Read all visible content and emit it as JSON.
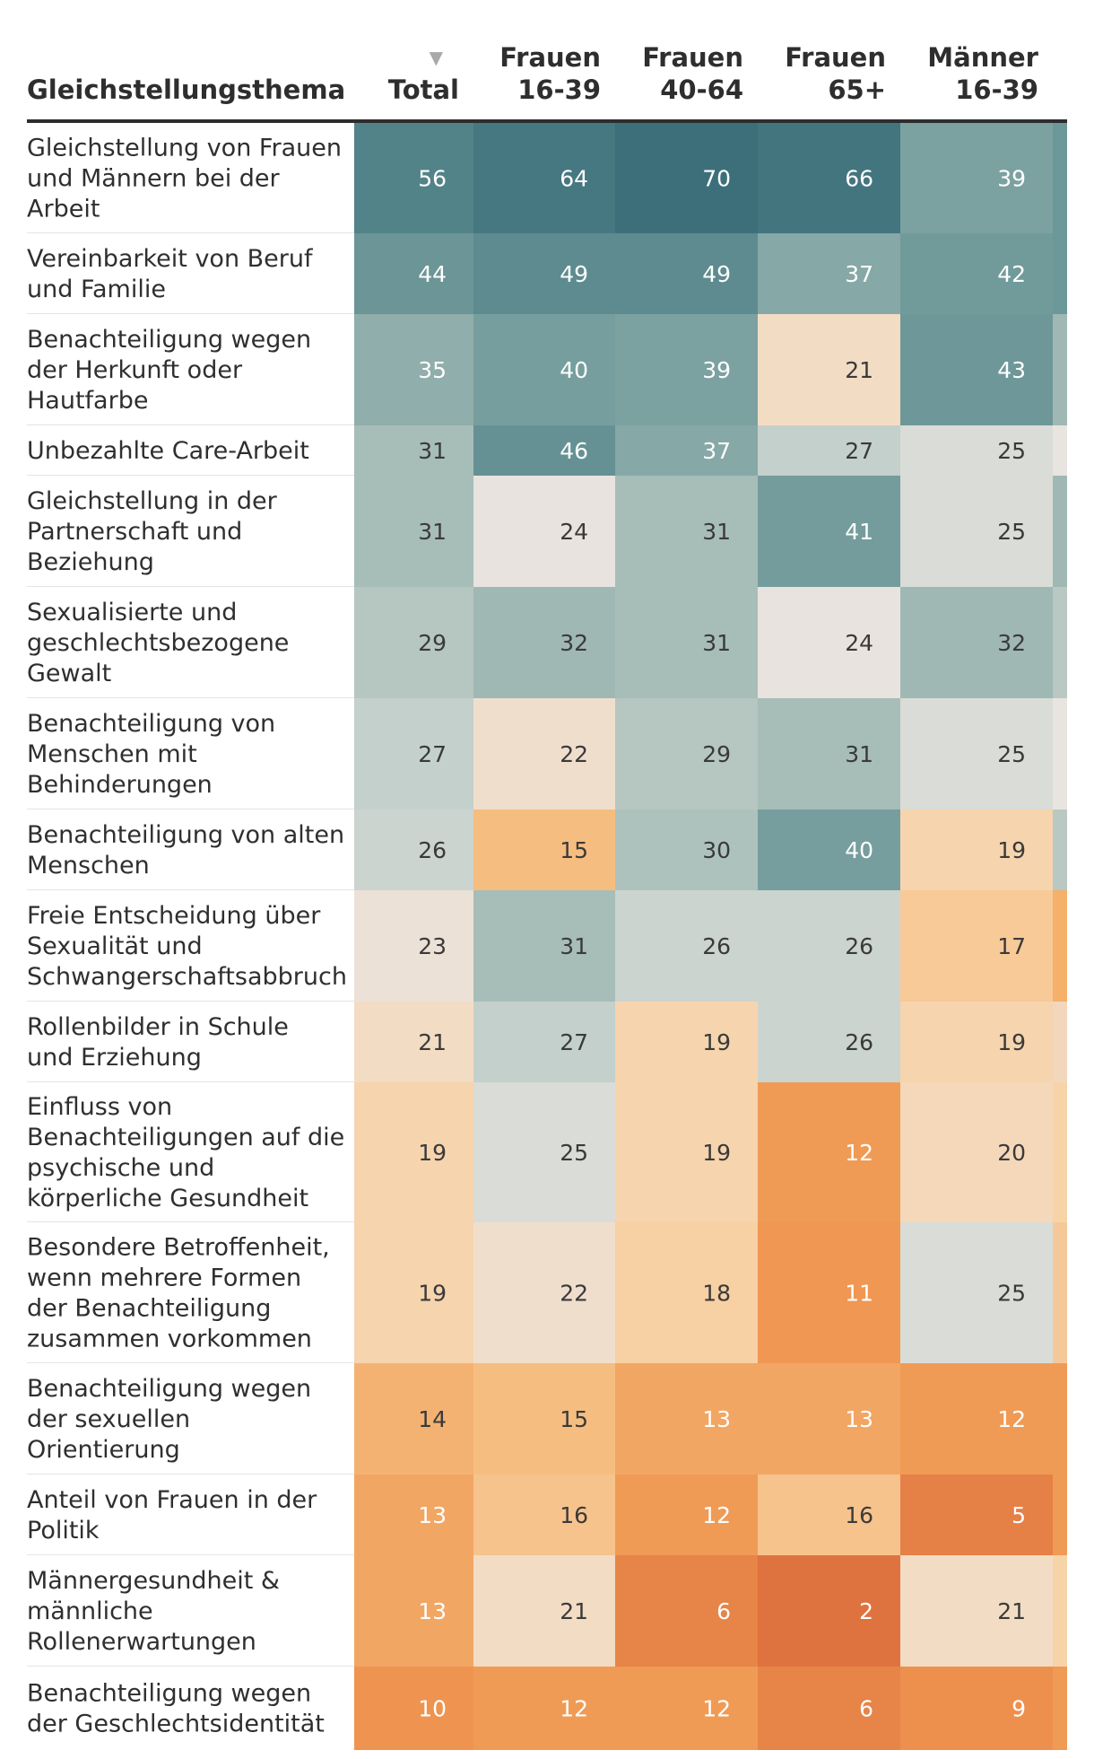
{
  "chart_data": {
    "type": "heatmap",
    "row_header": "Gleichstellungsthema",
    "sort_indicator": "▼",
    "columns": [
      {
        "label": [
          "Total"
        ],
        "sorted": true
      },
      {
        "label": [
          "Frauen",
          "16-39"
        ]
      },
      {
        "label": [
          "Frauen",
          "40-64"
        ]
      },
      {
        "label": [
          "Frauen",
          "65+"
        ]
      },
      {
        "label": [
          "Männer",
          "16-39"
        ]
      }
    ],
    "rows": [
      {
        "label": [
          "Gleichstellung von Frauen",
          "und Männern bei der",
          "Arbeit"
        ],
        "values": [
          56,
          64,
          70,
          66,
          39
        ]
      },
      {
        "label": [
          "Vereinbarkeit von Beruf",
          "und Familie"
        ],
        "values": [
          44,
          49,
          49,
          37,
          42
        ]
      },
      {
        "label": [
          "Benachteiligung wegen",
          "der Herkunft oder",
          "Hautfarbe"
        ],
        "values": [
          35,
          40,
          39,
          21,
          43
        ]
      },
      {
        "label": [
          "Unbezahlte Care-Arbeit"
        ],
        "values": [
          31,
          46,
          37,
          27,
          25
        ]
      },
      {
        "label": [
          "Gleichstellung in der",
          "Partnerschaft und",
          "Beziehung"
        ],
        "values": [
          31,
          24,
          31,
          41,
          25
        ]
      },
      {
        "label": [
          "Sexualisierte und",
          "geschlechtsbezogene",
          "Gewalt"
        ],
        "values": [
          29,
          32,
          31,
          24,
          32
        ]
      },
      {
        "label": [
          "Benachteiligung von",
          "Menschen mit",
          "Behinderungen"
        ],
        "values": [
          27,
          22,
          29,
          31,
          25
        ]
      },
      {
        "label": [
          "Benachteiligung von alten",
          "Menschen"
        ],
        "values": [
          26,
          15,
          30,
          40,
          19
        ]
      },
      {
        "label": [
          "Freie Entscheidung über",
          "Sexualität und",
          "Schwangerschaftsabbruch"
        ],
        "values": [
          23,
          31,
          26,
          26,
          17
        ]
      },
      {
        "label": [
          "Rollenbilder in Schule",
          "und Erziehung"
        ],
        "values": [
          21,
          27,
          19,
          26,
          19
        ]
      },
      {
        "label": [
          "Einfluss von",
          "Benachteiligungen auf die",
          "psychische und",
          "körperliche Gesundheit"
        ],
        "values": [
          19,
          25,
          19,
          12,
          20
        ]
      },
      {
        "label": [
          "Besondere Betroffenheit,",
          "wenn mehrere Formen",
          "der Benachteiligung",
          "zusammen vorkommen"
        ],
        "values": [
          19,
          22,
          18,
          11,
          25
        ]
      },
      {
        "label": [
          "Benachteiligung wegen",
          "der sexuellen",
          "Orientierung"
        ],
        "values": [
          14,
          15,
          13,
          13,
          12
        ]
      },
      {
        "label": [
          "Anteil von Frauen in der",
          "Politik"
        ],
        "values": [
          13,
          16,
          12,
          16,
          5
        ]
      },
      {
        "label": [
          "Männergesundheit &",
          "männliche",
          "Rollenerwartungen"
        ],
        "values": [
          13,
          21,
          6,
          2,
          21
        ]
      },
      {
        "label": [
          "Benachteiligung wegen",
          "der Geschlechtsidentität"
        ],
        "values": [
          10,
          12,
          12,
          6,
          9
        ]
      }
    ],
    "partial_column_colors": [
      "#6b9898",
      "#6b9898",
      "#9fb8b4",
      "#e8e4e0",
      "#9fb8b4",
      "#b9c8c3",
      "#e8e4e0",
      "#b9c8c3",
      "#f5b06a",
      "#f2d7bd",
      "#f7d3a8",
      "#f5c89a",
      "#ef9a55",
      "#ef9a55",
      "#f7d3a8",
      "#ef9a55"
    ],
    "color_scale": {
      "stops": [
        {
          "value": 2,
          "color": "#de7340"
        },
        {
          "value": 8,
          "color": "#ec8c4b"
        },
        {
          "value": 12,
          "color": "#f09b55"
        },
        {
          "value": 15,
          "color": "#f6bd80"
        },
        {
          "value": 18,
          "color": "#f7d0a3"
        },
        {
          "value": 21,
          "color": "#f3dcc4"
        },
        {
          "value": 24,
          "color": "#e9e3df"
        },
        {
          "value": 26,
          "color": "#cbd4cf"
        },
        {
          "value": 28,
          "color": "#bdcbc6"
        },
        {
          "value": 32,
          "color": "#9fb8b3"
        },
        {
          "value": 40,
          "color": "#779e9e"
        },
        {
          "value": 48,
          "color": "#5f8c90"
        },
        {
          "value": 60,
          "color": "#4c7e85"
        },
        {
          "value": 70,
          "color": "#3d6f7b"
        }
      ],
      "dark_text_color": "#3a3a3a",
      "light_text_color": "#ffffff"
    },
    "rule_color": "#2d2d2d"
  }
}
